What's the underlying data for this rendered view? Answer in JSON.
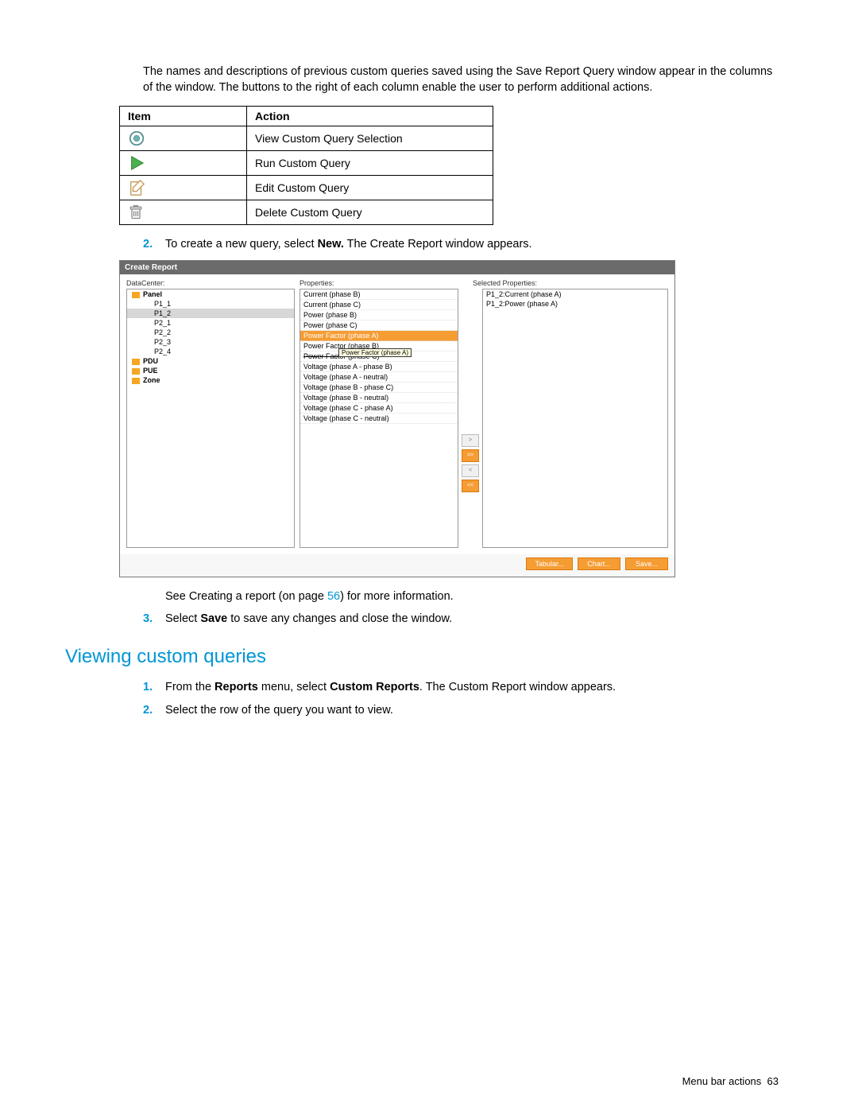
{
  "intro_paragraph": "The names and descriptions of previous custom queries saved using the Save Report Query window appear in the columns of the window. The buttons to the right of each column enable the user to perform additional actions.",
  "actions_table": {
    "headers": {
      "item": "Item",
      "action": "Action"
    },
    "rows": [
      {
        "icon": "eye-icon",
        "action": "View Custom Query Selection"
      },
      {
        "icon": "play-icon",
        "action": "Run Custom Query"
      },
      {
        "icon": "edit-icon",
        "action": "Edit Custom Query"
      },
      {
        "icon": "delete-icon",
        "action": "Delete Custom Query"
      }
    ]
  },
  "step2": {
    "num": "2.",
    "pre": "To create a new query, select ",
    "bold": "New.",
    "post": " The Create Report window appears."
  },
  "screenshot": {
    "title": "Create Report",
    "labels": {
      "datacenter": "DataCenter:",
      "properties": "Properties:",
      "selected": "Selected Properties:"
    },
    "tree": [
      {
        "label": "Panel",
        "folder": true,
        "depth": 0,
        "selected": false
      },
      {
        "label": "P1_1",
        "folder": false,
        "depth": 1,
        "selected": false
      },
      {
        "label": "P1_2",
        "folder": false,
        "depth": 1,
        "selected": true
      },
      {
        "label": "P2_1",
        "folder": false,
        "depth": 1,
        "selected": false
      },
      {
        "label": "P2_2",
        "folder": false,
        "depth": 1,
        "selected": false
      },
      {
        "label": "P2_3",
        "folder": false,
        "depth": 1,
        "selected": false
      },
      {
        "label": "P2_4",
        "folder": false,
        "depth": 1,
        "selected": false
      },
      {
        "label": "PDU",
        "folder": true,
        "depth": 0,
        "selected": false
      },
      {
        "label": "PUE",
        "folder": true,
        "depth": 0,
        "selected": false
      },
      {
        "label": "Zone",
        "folder": true,
        "depth": 0,
        "selected": false
      }
    ],
    "properties": [
      {
        "label": "Current (phase B)",
        "highlighted": false
      },
      {
        "label": "Current (phase C)",
        "highlighted": false
      },
      {
        "label": "Power (phase B)",
        "highlighted": false
      },
      {
        "label": "Power (phase C)",
        "highlighted": false
      },
      {
        "label": "Power Factor (phase A)",
        "highlighted": true
      },
      {
        "label": "Power Factor (phase B)",
        "highlighted": false
      },
      {
        "label": "Power Factor (phase C)",
        "highlighted": false,
        "struck": true
      },
      {
        "label": "Voltage (phase A - phase B)",
        "highlighted": false
      },
      {
        "label": "Voltage (phase A - neutral)",
        "highlighted": false
      },
      {
        "label": "Voltage (phase B - phase C)",
        "highlighted": false
      },
      {
        "label": "Voltage (phase B - neutral)",
        "highlighted": false
      },
      {
        "label": "Voltage (phase C - phase A)",
        "highlighted": false
      },
      {
        "label": "Voltage (phase C - neutral)",
        "highlighted": false
      }
    ],
    "tooltip": "Power Factor (phase A)",
    "selected_props": [
      "P1_2:Current (phase A)",
      "P1_2:Power (phase A)"
    ],
    "mid_buttons": [
      {
        "label": ">",
        "active": false
      },
      {
        "label": ">>",
        "active": true
      },
      {
        "label": "<",
        "active": false
      },
      {
        "label": "<<",
        "active": true
      }
    ],
    "footer_buttons": [
      "Tabular...",
      "Chart...",
      "Save..."
    ]
  },
  "see_creating": {
    "pre": "See Creating a report (on page ",
    "link": "56",
    "post": ") for more information."
  },
  "step3": {
    "num": "3.",
    "pre": "Select ",
    "bold": "Save",
    "post": " to save any changes and close the window."
  },
  "section_heading": "Viewing custom queries",
  "view_step1": {
    "num": "1.",
    "pre": "From the ",
    "bold1": "Reports",
    "mid": " menu, select ",
    "bold2": "Custom Reports",
    "post": ". The Custom Report window appears."
  },
  "view_step2": {
    "num": "2.",
    "text": "Select the row of the query you want to view."
  },
  "footer": {
    "text": "Menu bar actions",
    "page": "63"
  },
  "icons": {
    "eye_color": "#6bb5b5",
    "eye_stroke": "#5a9090",
    "play_fill": "#4caf50",
    "play_stroke": "#2e7d32",
    "edit_stroke": "#c79a5b",
    "delete_stroke": "#888888"
  }
}
